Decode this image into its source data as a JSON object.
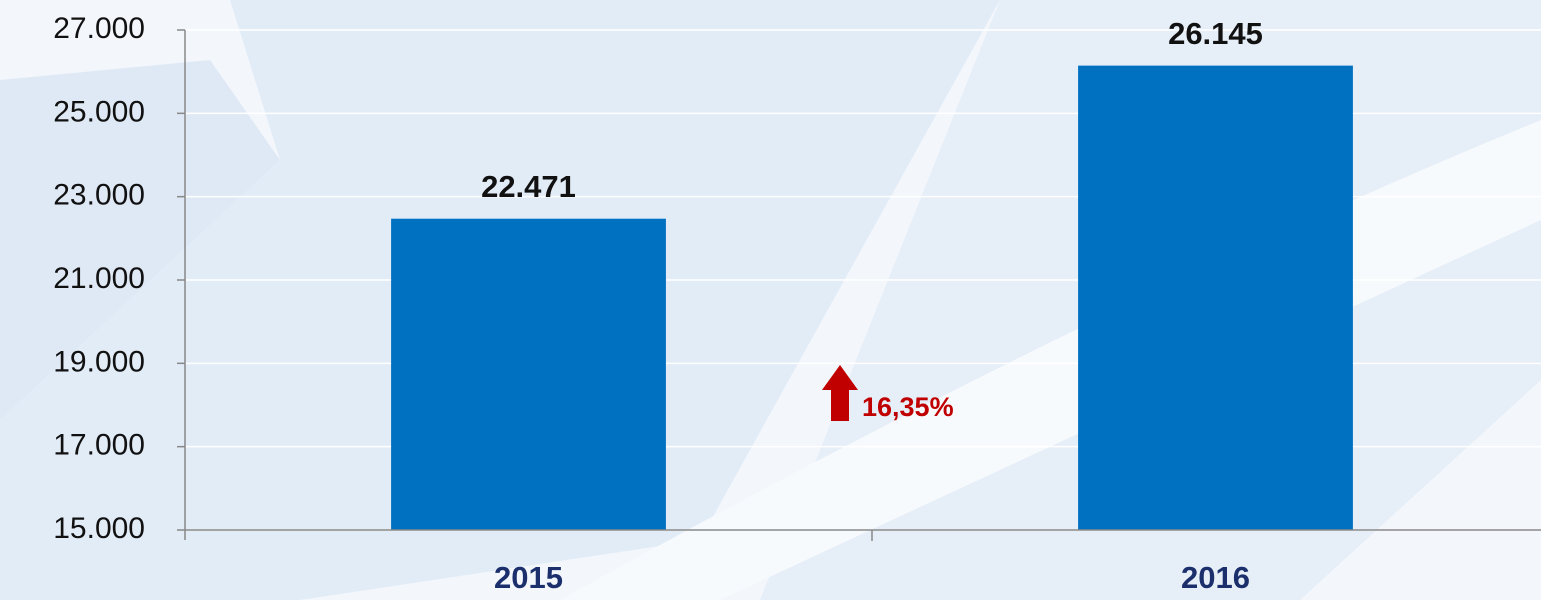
{
  "chart_data": {
    "type": "bar",
    "categories": [
      "2015",
      "2016"
    ],
    "values": [
      22471,
      26145
    ],
    "value_labels": [
      "22.471",
      "26.145"
    ],
    "color": "#0070c0",
    "ylim": [
      15000,
      27000
    ],
    "yticks": [
      {
        "value": 15000,
        "label": "15.000"
      },
      {
        "value": 17000,
        "label": "17.000"
      },
      {
        "value": 19000,
        "label": "19.000"
      },
      {
        "value": 21000,
        "label": "21.000"
      },
      {
        "value": 23000,
        "label": "23.000"
      },
      {
        "value": 25000,
        "label": "25.000"
      },
      {
        "value": 27000,
        "label": "27.000"
      }
    ],
    "grid": true,
    "annotation": "16,35%"
  }
}
